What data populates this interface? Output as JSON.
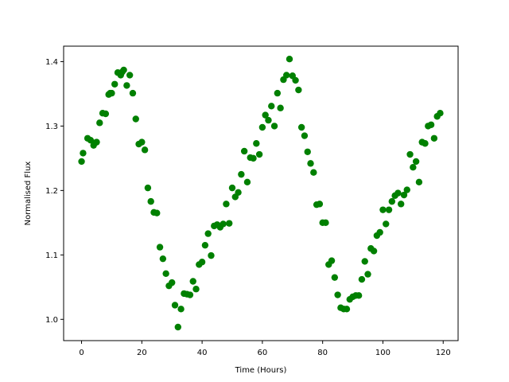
{
  "chart_data": {
    "type": "scatter",
    "title": "",
    "xlabel": "Time (Hours)",
    "ylabel": "Normalised Flux",
    "xlim": [
      -5.95,
      124.95
    ],
    "ylim": [
      0.967,
      1.424
    ],
    "xticks": [
      0,
      20,
      40,
      60,
      80,
      100,
      120
    ],
    "yticks": [
      1.0,
      1.1,
      1.2,
      1.3,
      1.4
    ],
    "xtick_labels": [
      "0",
      "20",
      "40",
      "60",
      "80",
      "100",
      "120"
    ],
    "ytick_labels": [
      "1.0",
      "1.1",
      "1.2",
      "1.3",
      "1.4"
    ],
    "grid": false,
    "marker_color": "#008000",
    "series": [
      {
        "x": [
          0.0,
          0.5,
          2.0,
          3.0,
          4.0,
          4.5,
          5.0,
          6.0,
          7.0,
          8.0,
          9.0,
          9.5,
          10.0,
          11.0,
          12.0,
          13.0,
          13.5,
          14.0,
          15.0,
          16.0,
          17.0,
          18.0,
          19.0,
          20.0,
          21.0,
          22.0,
          23.0,
          24.0,
          25.0,
          26.0,
          27.0,
          28.0,
          29.0,
          30.0,
          31.0,
          32.0,
          33.0,
          34.0,
          35.0,
          36.0,
          37.0,
          38.0,
          39.0,
          40.0,
          41.0,
          42.0,
          43.0,
          44.0,
          45.0,
          46.0,
          47.0,
          48.0,
          49.0,
          50.0,
          51.0,
          52.0,
          53.0,
          54.0,
          55.0,
          56.0,
          57.0,
          58.0,
          59.0,
          60.0,
          61.0,
          62.0,
          63.0,
          64.0,
          65.0,
          66.0,
          67.0,
          68.0,
          69.0,
          70.0,
          71.0,
          72.0,
          73.0,
          74.0,
          75.0,
          76.0,
          77.0,
          78.0,
          79.0,
          80.0,
          81.0,
          82.0,
          83.0,
          84.0,
          85.0,
          86.0,
          87.0,
          88.0,
          89.0,
          90.0,
          91.0,
          92.0,
          93.0,
          94.0,
          95.0,
          96.0,
          97.0,
          98.0,
          99.0,
          100.0,
          101.0,
          102.0,
          103.0,
          104.0,
          105.0,
          106.0,
          107.0,
          108.0,
          109.0,
          110.0,
          111.0,
          112.0,
          113.0,
          114.0,
          115.0,
          116.0,
          117.0,
          118.0,
          119.0
        ],
        "y": [
          1.245,
          1.258,
          1.281,
          1.278,
          1.27,
          1.274,
          1.275,
          1.305,
          1.32,
          1.319,
          1.349,
          1.351,
          1.351,
          1.365,
          1.383,
          1.379,
          1.384,
          1.387,
          1.363,
          1.379,
          1.351,
          1.311,
          1.272,
          1.275,
          1.263,
          1.204,
          1.183,
          1.166,
          1.165,
          1.112,
          1.094,
          1.071,
          1.052,
          1.057,
          1.022,
          0.988,
          1.016,
          1.04,
          1.039,
          1.038,
          1.059,
          1.047,
          1.085,
          1.089,
          1.115,
          1.133,
          1.099,
          1.145,
          1.147,
          1.143,
          1.148,
          1.179,
          1.149,
          1.204,
          1.19,
          1.197,
          1.225,
          1.261,
          1.213,
          1.251,
          1.25,
          1.273,
          1.256,
          1.298,
          1.317,
          1.309,
          1.331,
          1.3,
          1.351,
          1.328,
          1.372,
          1.379,
          1.404,
          1.378,
          1.371,
          1.356,
          1.298,
          1.285,
          1.26,
          1.242,
          1.228,
          1.178,
          1.179,
          1.15,
          1.15,
          1.085,
          1.091,
          1.065,
          1.038,
          1.018,
          1.016,
          1.016,
          1.031,
          1.035,
          1.037,
          1.037,
          1.062,
          1.09,
          1.07,
          1.11,
          1.106,
          1.13,
          1.135,
          1.17,
          1.148,
          1.17,
          1.183,
          1.192,
          1.196,
          1.179,
          1.193,
          1.201,
          1.256,
          1.236,
          1.245,
          1.213,
          1.275,
          1.273,
          1.3,
          1.302,
          1.281,
          1.315,
          1.32
        ]
      }
    ]
  }
}
